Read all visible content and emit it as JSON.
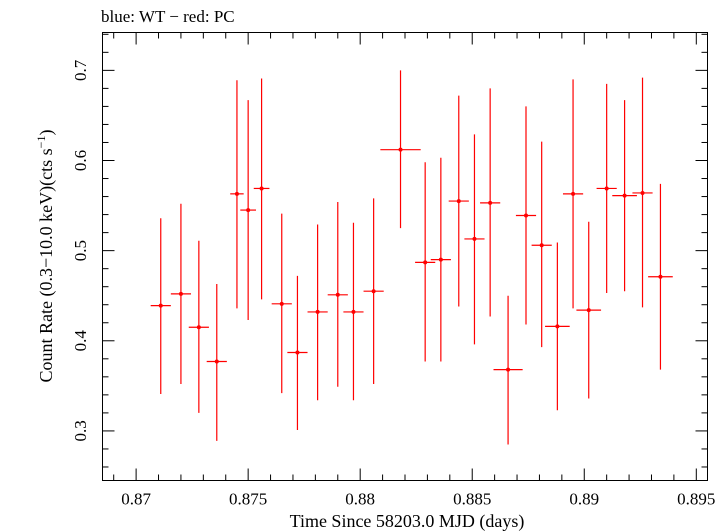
{
  "chart_data": {
    "type": "scatter",
    "title": "blue: WT − red: PC",
    "xlabel": "Time Since 58203.0 MJD (days)",
    "ylabel_parts": {
      "prefix": "Count Rate (0.3−10.0 keV)(cts s",
      "sup": "−1",
      "suffix": ")"
    },
    "xlim": [
      0.8685,
      0.8955
    ],
    "ylim": [
      0.245,
      0.742
    ],
    "xticks": [
      0.87,
      0.875,
      0.88,
      0.885,
      0.89,
      0.895
    ],
    "xtick_labels": [
      "0.87",
      "0.875",
      "0.88",
      "0.885",
      "0.89",
      "0.895"
    ],
    "yticks": [
      0.3,
      0.4,
      0.5,
      0.6,
      0.7
    ],
    "ytick_labels": [
      "0.3",
      "0.4",
      "0.5",
      "0.6",
      "0.7"
    ],
    "grid": false,
    "series": [
      {
        "color": "#ff0000",
        "points": [
          {
            "x": 0.8711,
            "y": 0.439,
            "xerr": 0.00045,
            "yerr_lo": 0.098,
            "yerr_hi": 0.097
          },
          {
            "x": 0.872,
            "y": 0.452,
            "xerr": 0.00045,
            "yerr_lo": 0.1,
            "yerr_hi": 0.1
          },
          {
            "x": 0.8728,
            "y": 0.415,
            "xerr": 0.00045,
            "yerr_lo": 0.095,
            "yerr_hi": 0.096
          },
          {
            "x": 0.8736,
            "y": 0.377,
            "xerr": 0.00045,
            "yerr_lo": 0.088,
            "yerr_hi": 0.086
          },
          {
            "x": 0.8745,
            "y": 0.563,
            "xerr": 0.0003,
            "yerr_lo": 0.127,
            "yerr_hi": 0.126
          },
          {
            "x": 0.875,
            "y": 0.545,
            "xerr": 0.00035,
            "yerr_lo": 0.122,
            "yerr_hi": 0.122
          },
          {
            "x": 0.8756,
            "y": 0.569,
            "xerr": 0.00035,
            "yerr_lo": 0.123,
            "yerr_hi": 0.122
          },
          {
            "x": 0.8765,
            "y": 0.441,
            "xerr": 0.00045,
            "yerr_lo": 0.099,
            "yerr_hi": 0.1
          },
          {
            "x": 0.8772,
            "y": 0.387,
            "xerr": 0.00045,
            "yerr_lo": 0.086,
            "yerr_hi": 0.085
          },
          {
            "x": 0.8781,
            "y": 0.432,
            "xerr": 0.00045,
            "yerr_lo": 0.098,
            "yerr_hi": 0.097
          },
          {
            "x": 0.879,
            "y": 0.451,
            "xerr": 0.00045,
            "yerr_lo": 0.102,
            "yerr_hi": 0.103
          },
          {
            "x": 0.8797,
            "y": 0.432,
            "xerr": 0.00045,
            "yerr_lo": 0.098,
            "yerr_hi": 0.099
          },
          {
            "x": 0.8806,
            "y": 0.455,
            "xerr": 0.00045,
            "yerr_lo": 0.103,
            "yerr_hi": 0.103
          },
          {
            "x": 0.8818,
            "y": 0.612,
            "xerr": 0.0009,
            "yerr_lo": 0.087,
            "yerr_hi": 0.088
          },
          {
            "x": 0.8829,
            "y": 0.487,
            "xerr": 0.00045,
            "yerr_lo": 0.11,
            "yerr_hi": 0.111
          },
          {
            "x": 0.8836,
            "y": 0.49,
            "xerr": 0.00045,
            "yerr_lo": 0.113,
            "yerr_hi": 0.113
          },
          {
            "x": 0.8844,
            "y": 0.555,
            "xerr": 0.00045,
            "yerr_lo": 0.117,
            "yerr_hi": 0.117
          },
          {
            "x": 0.8851,
            "y": 0.513,
            "xerr": 0.00045,
            "yerr_lo": 0.117,
            "yerr_hi": 0.116
          },
          {
            "x": 0.8858,
            "y": 0.553,
            "xerr": 0.00045,
            "yerr_lo": 0.126,
            "yerr_hi": 0.127
          },
          {
            "x": 0.8866,
            "y": 0.368,
            "xerr": 0.00065,
            "yerr_lo": 0.083,
            "yerr_hi": 0.082
          },
          {
            "x": 0.8874,
            "y": 0.539,
            "xerr": 0.00045,
            "yerr_lo": 0.121,
            "yerr_hi": 0.121
          },
          {
            "x": 0.8881,
            "y": 0.506,
            "xerr": 0.00045,
            "yerr_lo": 0.113,
            "yerr_hi": 0.115
          },
          {
            "x": 0.8888,
            "y": 0.416,
            "xerr": 0.00055,
            "yerr_lo": 0.093,
            "yerr_hi": 0.093
          },
          {
            "x": 0.8895,
            "y": 0.563,
            "xerr": 0.00045,
            "yerr_lo": 0.127,
            "yerr_hi": 0.127
          },
          {
            "x": 0.8902,
            "y": 0.434,
            "xerr": 0.00055,
            "yerr_lo": 0.098,
            "yerr_hi": 0.098
          },
          {
            "x": 0.891,
            "y": 0.569,
            "xerr": 0.00045,
            "yerr_lo": 0.116,
            "yerr_hi": 0.116
          },
          {
            "x": 0.8918,
            "y": 0.561,
            "xerr": 0.00055,
            "yerr_lo": 0.106,
            "yerr_hi": 0.106
          },
          {
            "x": 0.8926,
            "y": 0.564,
            "xerr": 0.00045,
            "yerr_lo": 0.127,
            "yerr_hi": 0.128
          },
          {
            "x": 0.8934,
            "y": 0.471,
            "xerr": 0.00055,
            "yerr_lo": 0.103,
            "yerr_hi": 0.103
          }
        ]
      }
    ]
  }
}
